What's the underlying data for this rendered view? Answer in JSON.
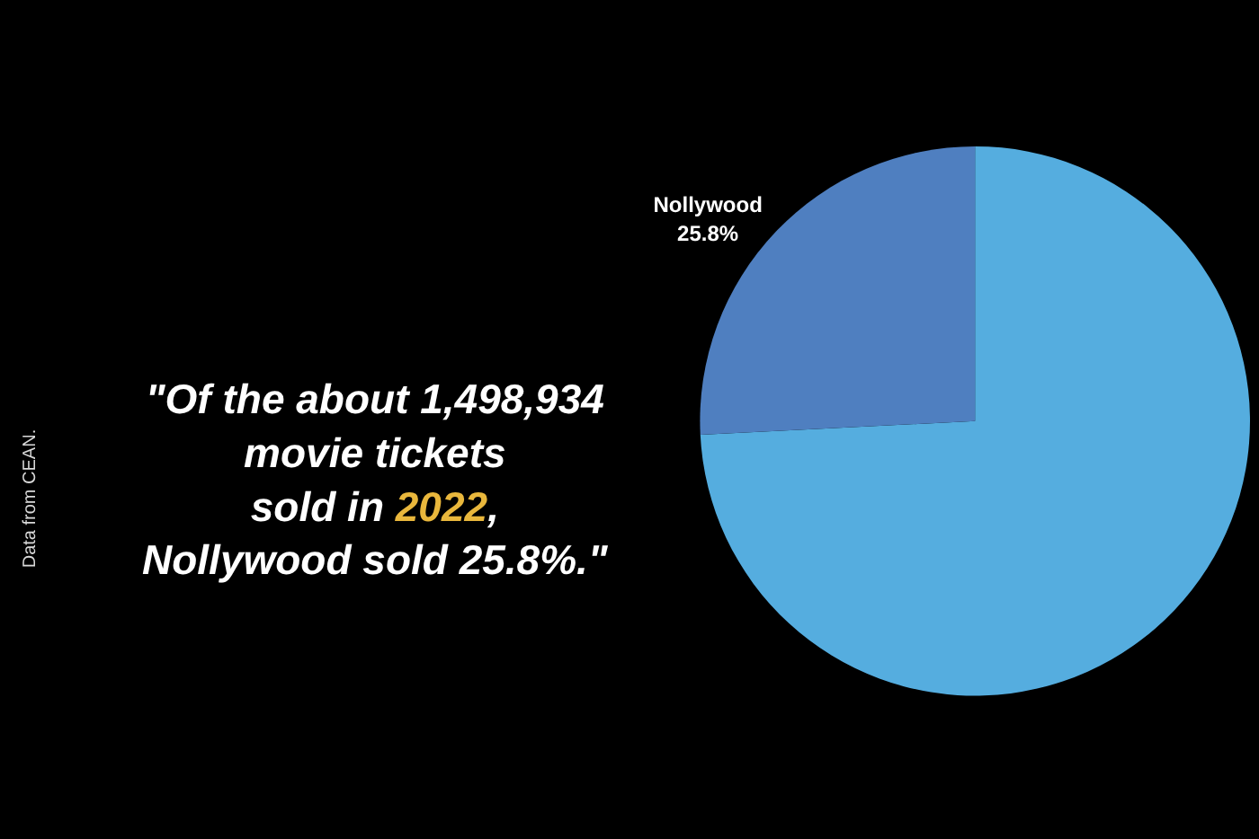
{
  "chart_data": {
    "type": "pie",
    "title": "\"Of the about 1,498,934\nmovie tickets\nsold in 2022,\nNollywood sold 25.8%.\"",
    "annotations": [
      "Data from CEAN."
    ],
    "categories": [
      null,
      "Nollywood"
    ],
    "values": [
      74.2,
      25.8
    ],
    "value_labels": [
      null,
      "25.8%"
    ],
    "colors": [
      "#55addf",
      "#4f7fc0"
    ],
    "legend": false
  }
}
